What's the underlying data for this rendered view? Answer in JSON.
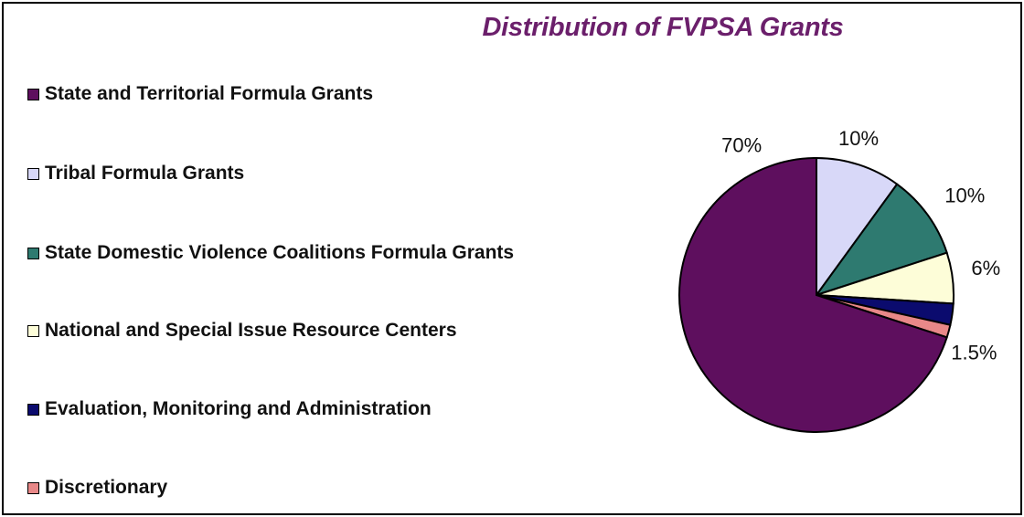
{
  "chart_data": {
    "type": "pie",
    "title": "Distribution of FVPSA Grants",
    "legend_position": "left",
    "slices": [
      {
        "label": "State and Territorial Formula Grants",
        "value": 70,
        "value_label": "70%",
        "color": "#5e0f5e"
      },
      {
        "label": "Tribal Formula Grants",
        "value": 10,
        "value_label": "10%",
        "color": "#d8d8f8"
      },
      {
        "label": "State Domestic Violence Coalitions Formula Grants",
        "value": 10,
        "value_label": "10%",
        "color": "#2e7a70"
      },
      {
        "label": "National and Special Issue Resource Centers",
        "value": 6,
        "value_label": "6%",
        "color": "#fdfdd8"
      },
      {
        "label": "Evaluation, Monitoring and Administration",
        "value": 2.5,
        "value_label": "",
        "color": "#0b0b6e"
      },
      {
        "label": "Discretionary",
        "value": 1.5,
        "value_label": "1.5%",
        "color": "#e88888"
      }
    ]
  },
  "title_color": "#6b1f6b"
}
